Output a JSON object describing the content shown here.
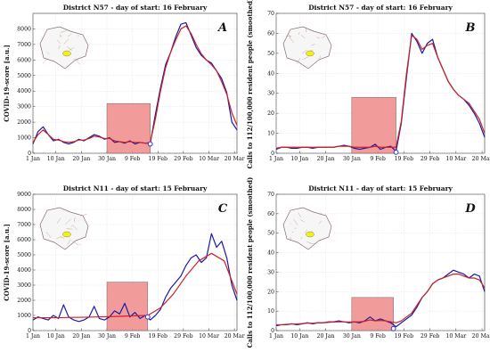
{
  "chart_data": [
    {
      "type": "line",
      "panel": "A",
      "title": "District N57 - day of start: 16 February",
      "xlabel": "",
      "ylabel": "COVID-19-score [a.u.]",
      "ylim": [
        0,
        9000
      ],
      "yticks": [
        0,
        1000,
        2000,
        3000,
        4000,
        5000,
        6000,
        7000,
        8000
      ],
      "xlim": [
        0,
        80
      ],
      "xticks": [
        0,
        9,
        19,
        29,
        39,
        49,
        59,
        69,
        79
      ],
      "xtick_labels": [
        "1 Jan",
        "10 Jan",
        "20 Jan",
        "30 Jan",
        "9 Feb",
        "19 Feb",
        "29 Feb",
        "10 Mar",
        "20 Mar"
      ],
      "shade": {
        "x0": 29,
        "x1": 46,
        "y": 3200
      },
      "start_marker": {
        "x": 46,
        "y": 600
      },
      "series": [
        {
          "color": "#1a1aaa",
          "x": [
            0,
            2,
            4,
            6,
            8,
            10,
            12,
            14,
            16,
            18,
            20,
            22,
            24,
            26,
            28,
            30,
            32,
            34,
            36,
            38,
            40,
            42,
            44,
            46,
            48,
            50,
            52,
            54,
            56,
            58,
            60,
            62,
            64,
            66,
            68,
            70,
            72,
            74,
            76,
            78,
            80
          ],
          "y": [
            600,
            1400,
            1700,
            1200,
            800,
            900,
            700,
            600,
            700,
            900,
            800,
            1000,
            1200,
            1100,
            900,
            1000,
            700,
            750,
            650,
            800,
            600,
            700,
            650,
            650,
            2500,
            4200,
            5700,
            6500,
            7500,
            8300,
            8400,
            7600,
            6800,
            6300,
            6000,
            5800,
            5300,
            4800,
            3900,
            2000,
            1500
          ]
        },
        {
          "color": "#cc2222",
          "x": [
            0,
            2,
            4,
            6,
            8,
            10,
            12,
            14,
            16,
            18,
            20,
            22,
            24,
            26,
            28,
            30,
            32,
            34,
            36,
            38,
            40,
            42,
            44,
            46,
            48,
            50,
            52,
            54,
            56,
            58,
            60,
            62,
            64,
            66,
            68,
            70,
            72,
            74,
            76,
            78,
            80
          ],
          "y": [
            700,
            1200,
            1500,
            1200,
            900,
            850,
            750,
            700,
            750,
            850,
            850,
            950,
            1100,
            1050,
            950,
            950,
            800,
            750,
            700,
            750,
            700,
            700,
            650,
            700,
            2200,
            4000,
            5500,
            6500,
            7300,
            8000,
            8200,
            7700,
            7000,
            6400,
            6000,
            5700,
            5300,
            4600,
            3800,
            2600,
            1800
          ]
        }
      ]
    },
    {
      "type": "line",
      "panel": "B",
      "title": "District N57 - day of start: 16 February",
      "xlabel": "",
      "ylabel": "Calls to 112/100,000 resident people (smoothed)",
      "ylim": [
        0,
        70
      ],
      "yticks": [
        0,
        10,
        20,
        30,
        40,
        50,
        60,
        70
      ],
      "xlim": [
        0,
        80
      ],
      "xticks": [
        0,
        9,
        19,
        29,
        39,
        49,
        59,
        69,
        79
      ],
      "xtick_labels": [
        "1 Jan",
        "10 Jan",
        "20 Jan",
        "30 Jan",
        "9 Feb",
        "19 Feb",
        "29 Feb",
        "10 Mar",
        "20 Mar"
      ],
      "shade": {
        "x0": 29,
        "x1": 46,
        "y": 28
      },
      "start_marker": {
        "x": 46,
        "y": 0.5
      },
      "series": [
        {
          "color": "#1a1aaa",
          "x": [
            0,
            2,
            4,
            6,
            8,
            10,
            12,
            14,
            16,
            18,
            20,
            22,
            24,
            26,
            28,
            30,
            32,
            34,
            36,
            38,
            40,
            42,
            44,
            46,
            48,
            50,
            52,
            54,
            56,
            58,
            60,
            62,
            64,
            66,
            68,
            70,
            72,
            74,
            76,
            78,
            80
          ],
          "y": [
            2,
            3,
            3,
            2.5,
            2.5,
            3,
            3,
            2.5,
            3,
            3,
            3,
            3,
            3.5,
            4,
            3.5,
            2.5,
            2,
            2.5,
            3,
            4.5,
            2,
            3,
            3.5,
            1,
            15,
            38,
            60,
            56,
            50,
            55,
            57,
            48,
            42,
            36,
            32,
            29,
            27,
            24,
            20,
            15,
            8
          ]
        },
        {
          "color": "#cc2222",
          "x": [
            0,
            2,
            4,
            6,
            8,
            10,
            12,
            14,
            16,
            18,
            20,
            22,
            24,
            26,
            28,
            30,
            32,
            34,
            36,
            38,
            40,
            42,
            44,
            46,
            48,
            50,
            52,
            54,
            56,
            58,
            60,
            62,
            64,
            66,
            68,
            70,
            72,
            74,
            76,
            78,
            80
          ],
          "y": [
            2.5,
            3,
            3,
            3,
            3,
            3,
            3,
            3,
            3,
            3,
            3,
            3,
            3.5,
            3.5,
            3.5,
            3,
            3,
            3,
            3,
            3.5,
            3,
            3,
            3,
            3,
            16,
            40,
            59,
            57,
            52,
            54,
            55,
            48,
            42,
            36,
            32,
            29,
            27,
            25,
            21,
            17,
            10
          ]
        }
      ]
    },
    {
      "type": "line",
      "panel": "C",
      "title": "District N11 - day of start: 15 February",
      "xlabel": "",
      "ylabel": "COVID-19-score [a.u.]",
      "ylim": [
        0,
        9000
      ],
      "yticks": [
        0,
        1000,
        2000,
        3000,
        4000,
        5000,
        6000,
        7000,
        8000,
        9000
      ],
      "xlim": [
        0,
        80
      ],
      "xticks": [
        0,
        9,
        19,
        29,
        39,
        49,
        59,
        69,
        79
      ],
      "xtick_labels": [
        "1 Jan",
        "10 Jan",
        "20 Jan",
        "30 Jan",
        "9 Feb",
        "19 Feb",
        "29 Feb",
        "10 Mar",
        "20 Mar"
      ],
      "shade": {
        "x0": 29,
        "x1": 45,
        "y": 3200
      },
      "start_marker": {
        "x": 45,
        "y": 900
      },
      "series": [
        {
          "color": "#1a1aaa",
          "x": [
            0,
            2,
            4,
            6,
            8,
            10,
            12,
            14,
            16,
            18,
            20,
            22,
            24,
            26,
            28,
            30,
            32,
            34,
            36,
            38,
            40,
            42,
            44,
            46,
            48,
            50,
            52,
            54,
            56,
            58,
            60,
            62,
            64,
            66,
            68,
            70,
            72,
            74,
            76,
            78,
            80
          ],
          "y": [
            700,
            900,
            800,
            700,
            1000,
            800,
            1700,
            900,
            700,
            600,
            700,
            900,
            1600,
            800,
            700,
            900,
            1300,
            1100,
            1800,
            900,
            1200,
            800,
            1000,
            700,
            1000,
            1400,
            2200,
            2800,
            3200,
            3600,
            4300,
            4800,
            5000,
            4500,
            4800,
            6400,
            5500,
            5900,
            4800,
            3000,
            2000
          ]
        },
        {
          "color": "#cc2222",
          "x": [
            0,
            5,
            10,
            15,
            20,
            25,
            30,
            35,
            40,
            45,
            50,
            55,
            60,
            65,
            70,
            75,
            80
          ],
          "y": [
            850,
            850,
            850,
            870,
            880,
            900,
            920,
            950,
            980,
            1000,
            1500,
            2400,
            3600,
            4600,
            5100,
            4600,
            2400
          ]
        }
      ]
    },
    {
      "type": "line",
      "panel": "D",
      "title": "District N11 - day of start: 15 February",
      "xlabel": "",
      "ylabel": "Calls to 112/100,000 resident people (smoothed)",
      "ylim": [
        0,
        70
      ],
      "yticks": [
        0,
        10,
        20,
        30,
        40,
        50,
        60,
        70
      ],
      "xlim": [
        0,
        80
      ],
      "xticks": [
        0,
        9,
        19,
        29,
        39,
        49,
        59,
        69,
        79
      ],
      "xtick_labels": [
        "1 Jan",
        "10 Jan",
        "20 Jan",
        "30 Jan",
        "9 Feb",
        "19 Feb",
        "29 Feb",
        "10 Mar",
        "20 Mar"
      ],
      "shade": {
        "x0": 29,
        "x1": 45,
        "y": 17
      },
      "start_marker": {
        "x": 45,
        "y": 1
      },
      "series": [
        {
          "color": "#1a1aaa",
          "x": [
            0,
            2,
            4,
            6,
            8,
            10,
            12,
            14,
            16,
            18,
            20,
            22,
            24,
            26,
            28,
            30,
            32,
            34,
            36,
            38,
            40,
            42,
            44,
            46,
            48,
            50,
            52,
            54,
            56,
            58,
            60,
            62,
            64,
            66,
            68,
            70,
            72,
            74,
            76,
            78,
            80
          ],
          "y": [
            2.5,
            3,
            3,
            3.5,
            3,
            3.5,
            4,
            3.5,
            4,
            4,
            4.5,
            4.5,
            5,
            4.5,
            4,
            4.5,
            4,
            5,
            7,
            5,
            6,
            5,
            4,
            2,
            4,
            6,
            8,
            12,
            17,
            20,
            24,
            26,
            27,
            29,
            31,
            30,
            29,
            27,
            29,
            28,
            20
          ]
        },
        {
          "color": "#cc2222",
          "x": [
            0,
            2,
            4,
            6,
            8,
            10,
            12,
            14,
            16,
            18,
            20,
            22,
            24,
            26,
            28,
            30,
            32,
            34,
            36,
            38,
            40,
            42,
            44,
            46,
            48,
            50,
            52,
            54,
            56,
            58,
            60,
            62,
            64,
            66,
            68,
            70,
            72,
            74,
            76,
            78,
            80
          ],
          "y": [
            3,
            3,
            3.2,
            3.4,
            3.4,
            3.6,
            3.8,
            3.8,
            4,
            4,
            4.2,
            4.4,
            4.5,
            4.5,
            4.4,
            4.5,
            4.5,
            4.8,
            5.5,
            5,
            5.2,
            5,
            4.5,
            4,
            5,
            7,
            9,
            13,
            17,
            20,
            24,
            26,
            27,
            28,
            29,
            29,
            28,
            27,
            27,
            26,
            22
          ]
        }
      ]
    }
  ]
}
